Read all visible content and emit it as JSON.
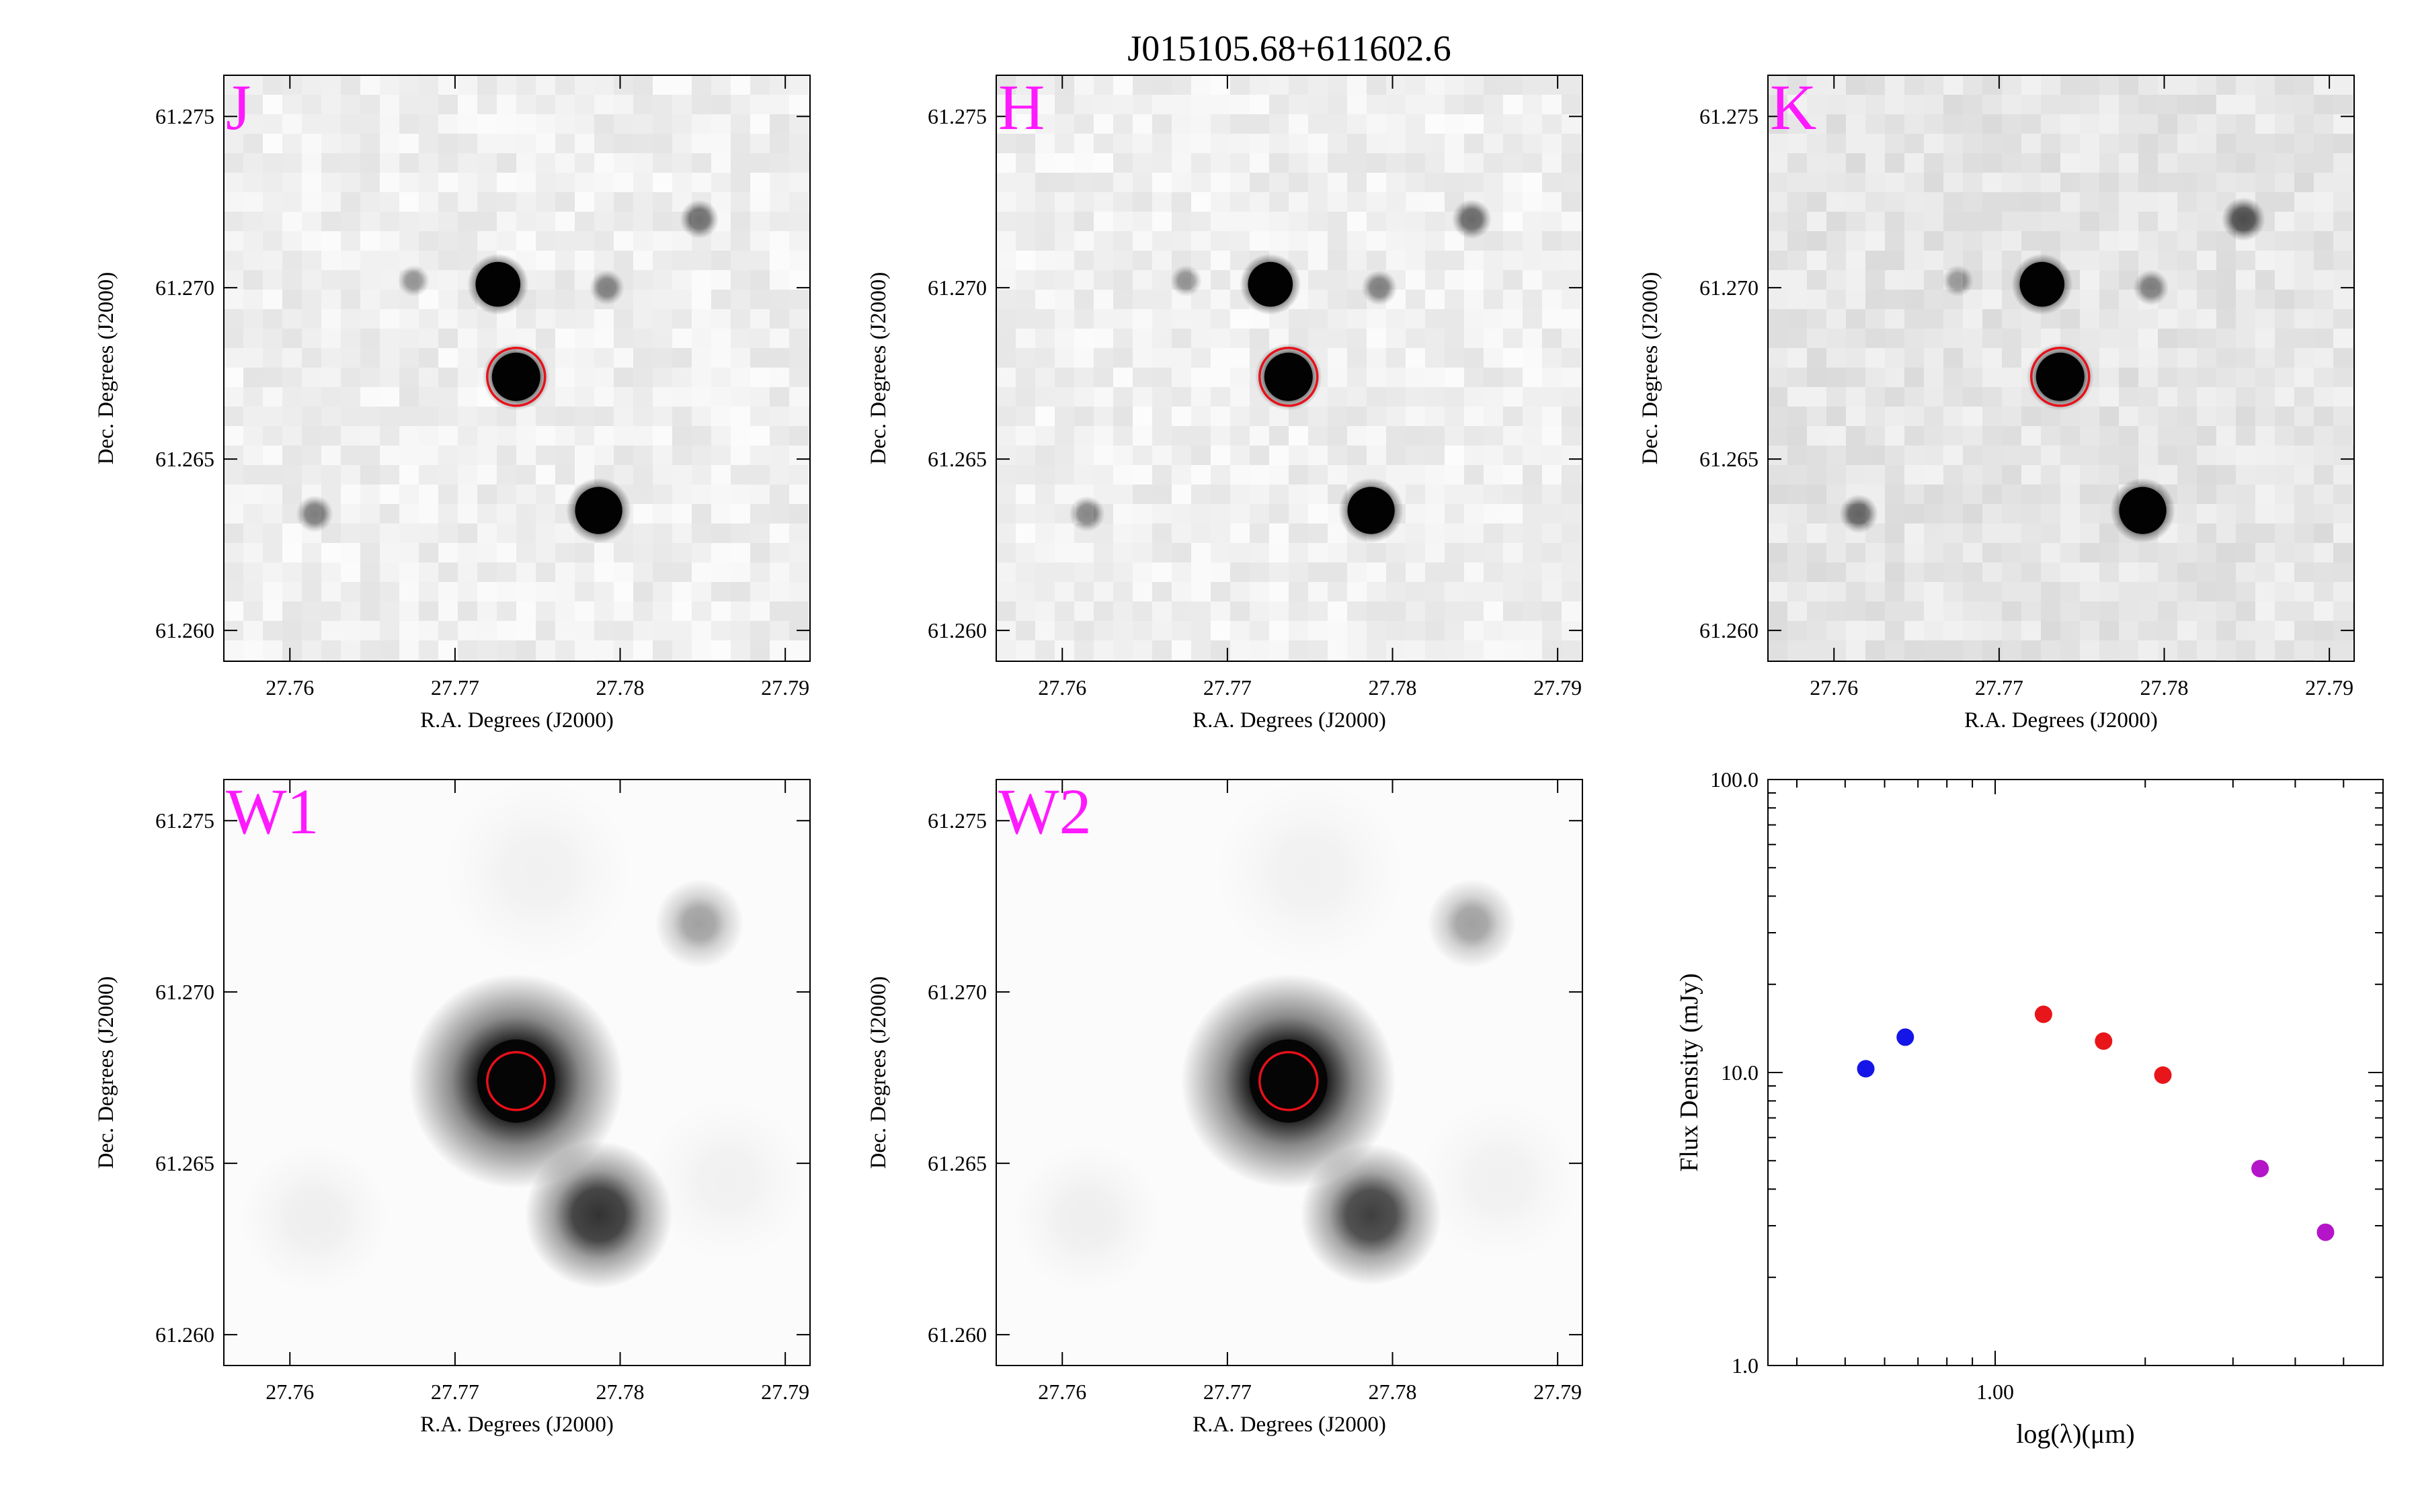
{
  "figure": {
    "title": "J015105.68+611602.6",
    "colors": {
      "band_label": "#ff19ff",
      "source_circle": "#e8101a",
      "axis": "#000000"
    }
  },
  "image_panels": [
    {
      "band": "J",
      "xlabel": "R.A. Degrees (J2000)",
      "ylabel": "Dec. Degrees (J2000)",
      "x_ticks": [
        "27.76",
        "27.77",
        "27.78",
        "27.79"
      ],
      "y_ticks": [
        "61.275",
        "61.270",
        "61.265",
        "61.260"
      ],
      "xlim": [
        27.756,
        27.7915
      ],
      "ylim": [
        61.2591,
        61.2762
      ],
      "source_position": {
        "ra": 27.7737,
        "dec": 61.2674
      },
      "stars": [
        {
          "ra": 27.7737,
          "dec": 61.2674,
          "flux": 1.0
        },
        {
          "ra": 27.7787,
          "dec": 61.2635,
          "flux": 0.95
        },
        {
          "ra": 27.7726,
          "dec": 61.2701,
          "flux": 0.85
        },
        {
          "ra": 27.7848,
          "dec": 61.272,
          "flux": 0.3
        },
        {
          "ra": 27.7615,
          "dec": 61.2634,
          "flux": 0.25
        },
        {
          "ra": 27.7792,
          "dec": 61.27,
          "flux": 0.2
        },
        {
          "ra": 27.7675,
          "dec": 61.2702,
          "flux": 0.12
        }
      ]
    },
    {
      "band": "H",
      "xlabel": "R.A. Degrees (J2000)",
      "ylabel": "Dec. Degrees (J2000)",
      "x_ticks": [
        "27.76",
        "27.77",
        "27.78",
        "27.79"
      ],
      "y_ticks": [
        "61.275",
        "61.270",
        "61.265",
        "61.260"
      ],
      "xlim": [
        27.756,
        27.7915
      ],
      "ylim": [
        61.2591,
        61.2762
      ],
      "source_position": {
        "ra": 27.7737,
        "dec": 61.2674
      },
      "stars": [
        {
          "ra": 27.7737,
          "dec": 61.2674,
          "flux": 1.0
        },
        {
          "ra": 27.7787,
          "dec": 61.2635,
          "flux": 0.95
        },
        {
          "ra": 27.7726,
          "dec": 61.2701,
          "flux": 0.85
        },
        {
          "ra": 27.7848,
          "dec": 61.272,
          "flux": 0.32
        },
        {
          "ra": 27.7615,
          "dec": 61.2634,
          "flux": 0.22
        },
        {
          "ra": 27.7792,
          "dec": 61.27,
          "flux": 0.22
        },
        {
          "ra": 27.7675,
          "dec": 61.2702,
          "flux": 0.12
        }
      ]
    },
    {
      "band": "K",
      "xlabel": "R.A. Degrees (J2000)",
      "ylabel": "Dec. Degrees (J2000)",
      "x_ticks": [
        "27.76",
        "27.77",
        "27.78",
        "27.79"
      ],
      "y_ticks": [
        "61.275",
        "61.270",
        "61.265",
        "61.260"
      ],
      "xlim": [
        27.756,
        27.7915
      ],
      "ylim": [
        61.2591,
        61.2762
      ],
      "source_position": {
        "ra": 27.7737,
        "dec": 61.2674
      },
      "stars": [
        {
          "ra": 27.7737,
          "dec": 61.2674,
          "flux": 1.0
        },
        {
          "ra": 27.7787,
          "dec": 61.2635,
          "flux": 0.95
        },
        {
          "ra": 27.7726,
          "dec": 61.2701,
          "flux": 0.85
        },
        {
          "ra": 27.7848,
          "dec": 61.272,
          "flux": 0.42
        },
        {
          "ra": 27.7615,
          "dec": 61.2634,
          "flux": 0.3
        },
        {
          "ra": 27.7792,
          "dec": 61.27,
          "flux": 0.22
        },
        {
          "ra": 27.7675,
          "dec": 61.2702,
          "flux": 0.12
        }
      ]
    },
    {
      "band": "W1",
      "xlabel": "R.A. Degrees (J2000)",
      "ylabel": "Dec. Degrees (J2000)",
      "x_ticks": [
        "27.76",
        "27.77",
        "27.78",
        "27.79"
      ],
      "y_ticks": [
        "61.275",
        "61.270",
        "61.265",
        "61.260"
      ],
      "xlim": [
        27.756,
        27.7915
      ],
      "ylim": [
        61.2591,
        61.2762
      ],
      "source_position": {
        "ra": 27.7737,
        "dec": 61.2674
      },
      "stars": [
        {
          "ra": 27.7737,
          "dec": 61.2674,
          "flux": 1.0
        },
        {
          "ra": 27.7787,
          "dec": 61.2635,
          "flux": 0.5
        },
        {
          "ra": 27.7848,
          "dec": 61.272,
          "flux": 0.06
        }
      ]
    },
    {
      "band": "W2",
      "xlabel": "R.A. Degrees (J2000)",
      "ylabel": "Dec. Degrees (J2000)",
      "x_ticks": [
        "27.76",
        "27.77",
        "27.78",
        "27.79"
      ],
      "y_ticks": [
        "61.275",
        "61.270",
        "61.265",
        "61.260"
      ],
      "xlim": [
        27.756,
        27.7915
      ],
      "ylim": [
        61.2591,
        61.2762
      ],
      "source_position": {
        "ra": 27.7737,
        "dec": 61.2674
      },
      "stars": [
        {
          "ra": 27.7737,
          "dec": 61.2674,
          "flux": 1.0
        },
        {
          "ra": 27.7787,
          "dec": 61.2635,
          "flux": 0.45
        },
        {
          "ra": 27.7848,
          "dec": 61.272,
          "flux": 0.06
        }
      ]
    }
  ],
  "chart_data": {
    "type": "scatter",
    "xlabel": "log(λ)(μm)",
    "ylabel": "Flux Density (mJy)",
    "x_scale": "log",
    "y_scale": "log",
    "xlim": [
      0.35,
      6.0
    ],
    "ylim": [
      1.0,
      100.0
    ],
    "x_tick_labels": [
      "1.00"
    ],
    "y_tick_labels": [
      "1.0",
      "10.0",
      "100.0"
    ],
    "series": [
      {
        "color": "#1515e8",
        "points": [
          {
            "x": 0.55,
            "y": 10.3
          },
          {
            "x": 0.66,
            "y": 13.2
          }
        ]
      },
      {
        "color": "#e8151a",
        "points": [
          {
            "x": 1.25,
            "y": 15.8
          },
          {
            "x": 1.65,
            "y": 12.8
          },
          {
            "x": 2.17,
            "y": 9.8
          }
        ]
      },
      {
        "color": "#b415c8",
        "points": [
          {
            "x": 3.4,
            "y": 4.7
          },
          {
            "x": 4.6,
            "y": 2.85
          }
        ]
      }
    ]
  }
}
